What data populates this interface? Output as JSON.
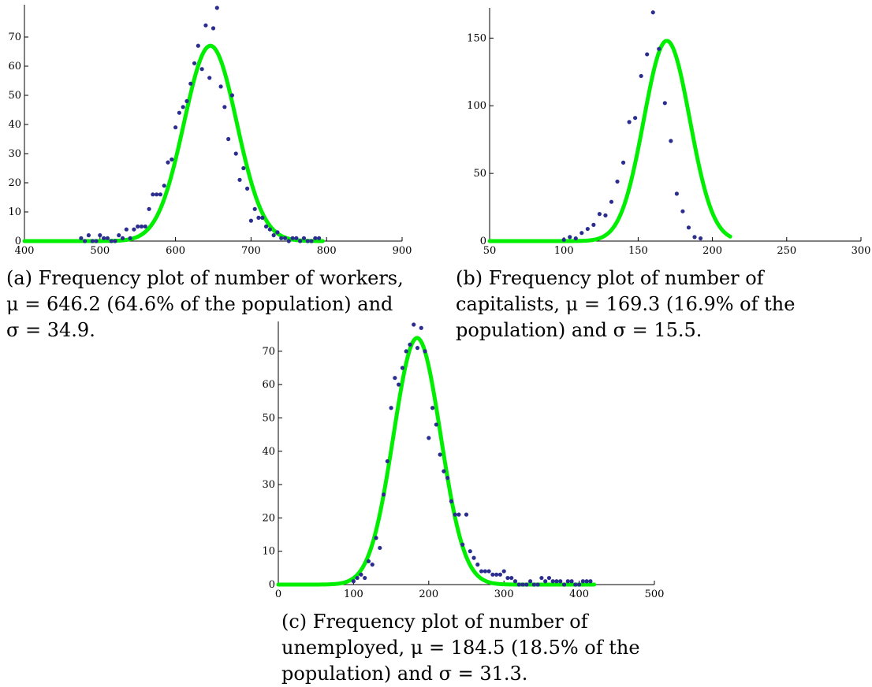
{
  "chart_data": [
    {
      "id": "a",
      "type": "scatter",
      "caption": "(a) Frequency plot of number of workers, μ = 646.2 (64.6% of the population) and σ = 34.9.",
      "xlim": [
        400,
        900
      ],
      "ylim": [
        0,
        80
      ],
      "x_ticks": [
        400,
        500,
        600,
        700,
        800,
        900
      ],
      "y_ticks": [
        0,
        10,
        20,
        30,
        40,
        50,
        60,
        70
      ],
      "fit": {
        "type": "normal",
        "mu": 646.2,
        "sigma": 34.9,
        "peak": 67,
        "range": [
          400,
          795
        ]
      },
      "points": [
        [
          475,
          1
        ],
        [
          480,
          0
        ],
        [
          485,
          2
        ],
        [
          490,
          0
        ],
        [
          495,
          0
        ],
        [
          500,
          2
        ],
        [
          505,
          1
        ],
        [
          510,
          1
        ],
        [
          515,
          0
        ],
        [
          520,
          0
        ],
        [
          525,
          2
        ],
        [
          530,
          1
        ],
        [
          535,
          4
        ],
        [
          540,
          1
        ],
        [
          545,
          4
        ],
        [
          550,
          5
        ],
        [
          555,
          5
        ],
        [
          560,
          5
        ],
        [
          565,
          11
        ],
        [
          570,
          16
        ],
        [
          575,
          16
        ],
        [
          580,
          16
        ],
        [
          585,
          19
        ],
        [
          590,
          27
        ],
        [
          595,
          28
        ],
        [
          600,
          39
        ],
        [
          605,
          44
        ],
        [
          610,
          46
        ],
        [
          615,
          48
        ],
        [
          620,
          54
        ],
        [
          625,
          61
        ],
        [
          630,
          67
        ],
        [
          635,
          59
        ],
        [
          640,
          74
        ],
        [
          645,
          56
        ],
        [
          650,
          73
        ],
        [
          655,
          80
        ],
        [
          660,
          53
        ],
        [
          665,
          46
        ],
        [
          670,
          35
        ],
        [
          675,
          50
        ],
        [
          680,
          30
        ],
        [
          685,
          21
        ],
        [
          690,
          25
        ],
        [
          695,
          18
        ],
        [
          700,
          7
        ],
        [
          705,
          11
        ],
        [
          710,
          8
        ],
        [
          715,
          8
        ],
        [
          720,
          5
        ],
        [
          725,
          4
        ],
        [
          730,
          2
        ],
        [
          735,
          3
        ],
        [
          740,
          1
        ],
        [
          745,
          1
        ],
        [
          750,
          0
        ],
        [
          755,
          1
        ],
        [
          760,
          1
        ],
        [
          765,
          0
        ],
        [
          770,
          1
        ],
        [
          775,
          0
        ],
        [
          780,
          0
        ],
        [
          785,
          1
        ],
        [
          790,
          1
        ]
      ]
    },
    {
      "id": "b",
      "type": "scatter",
      "caption": "(b) Frequency plot of number of capitalists, μ = 169.3 (16.9% of the population) and σ = 15.5.",
      "xlim": [
        50,
        300
      ],
      "ylim": [
        0,
        170
      ],
      "x_ticks": [
        50,
        100,
        150,
        200,
        250,
        300
      ],
      "y_ticks": [
        0,
        50,
        100,
        150
      ],
      "fit": {
        "type": "normal",
        "mu": 169.3,
        "sigma": 15.5,
        "peak": 148,
        "range": [
          50,
          212
        ]
      },
      "points": [
        [
          100,
          1
        ],
        [
          104,
          3
        ],
        [
          108,
          2
        ],
        [
          112,
          6
        ],
        [
          116,
          9
        ],
        [
          120,
          12
        ],
        [
          124,
          20
        ],
        [
          128,
          19
        ],
        [
          132,
          29
        ],
        [
          136,
          44
        ],
        [
          140,
          58
        ],
        [
          144,
          88
        ],
        [
          148,
          91
        ],
        [
          152,
          122
        ],
        [
          156,
          138
        ],
        [
          160,
          169
        ],
        [
          164,
          142
        ],
        [
          168,
          102
        ],
        [
          172,
          74
        ],
        [
          176,
          35
        ],
        [
          180,
          22
        ],
        [
          184,
          10
        ],
        [
          188,
          3
        ],
        [
          192,
          2
        ]
      ]
    },
    {
      "id": "c",
      "type": "scatter",
      "caption": "(c) Frequency plot of number of unemployed, μ = 184.5 (18.5% of the population) and σ = 31.3.",
      "xlim": [
        0,
        500
      ],
      "ylim": [
        0,
        78
      ],
      "x_ticks": [
        0,
        100,
        200,
        300,
        400,
        500
      ],
      "y_ticks": [
        0,
        10,
        20,
        30,
        40,
        50,
        60,
        70
      ],
      "fit": {
        "type": "normal",
        "mu": 184.5,
        "sigma": 31.3,
        "peak": 74,
        "range": [
          0,
          420
        ]
      },
      "points": [
        [
          100,
          1
        ],
        [
          105,
          2
        ],
        [
          110,
          3
        ],
        [
          115,
          2
        ],
        [
          120,
          7
        ],
        [
          125,
          6
        ],
        [
          130,
          14
        ],
        [
          135,
          11
        ],
        [
          140,
          27
        ],
        [
          145,
          37
        ],
        [
          150,
          53
        ],
        [
          155,
          62
        ],
        [
          160,
          60
        ],
        [
          165,
          65
        ],
        [
          170,
          70
        ],
        [
          175,
          72
        ],
        [
          180,
          78
        ],
        [
          185,
          71
        ],
        [
          190,
          77
        ],
        [
          195,
          70
        ],
        [
          200,
          44
        ],
        [
          205,
          53
        ],
        [
          210,
          48
        ],
        [
          215,
          39
        ],
        [
          220,
          34
        ],
        [
          225,
          32
        ],
        [
          230,
          25
        ],
        [
          235,
          21
        ],
        [
          240,
          21
        ],
        [
          245,
          12
        ],
        [
          250,
          21
        ],
        [
          255,
          10
        ],
        [
          260,
          8
        ],
        [
          265,
          6
        ],
        [
          270,
          4
        ],
        [
          275,
          4
        ],
        [
          280,
          4
        ],
        [
          285,
          3
        ],
        [
          290,
          3
        ],
        [
          295,
          3
        ],
        [
          300,
          4
        ],
        [
          305,
          2
        ],
        [
          310,
          2
        ],
        [
          315,
          1
        ],
        [
          320,
          0
        ],
        [
          325,
          0
        ],
        [
          330,
          0
        ],
        [
          335,
          1
        ],
        [
          340,
          0
        ],
        [
          345,
          0
        ],
        [
          350,
          2
        ],
        [
          355,
          1
        ],
        [
          360,
          2
        ],
        [
          365,
          1
        ],
        [
          370,
          1
        ],
        [
          375,
          1
        ],
        [
          380,
          0
        ],
        [
          385,
          1
        ],
        [
          390,
          1
        ],
        [
          395,
          0
        ],
        [
          400,
          0
        ],
        [
          405,
          1
        ],
        [
          410,
          1
        ],
        [
          415,
          1
        ]
      ]
    }
  ]
}
